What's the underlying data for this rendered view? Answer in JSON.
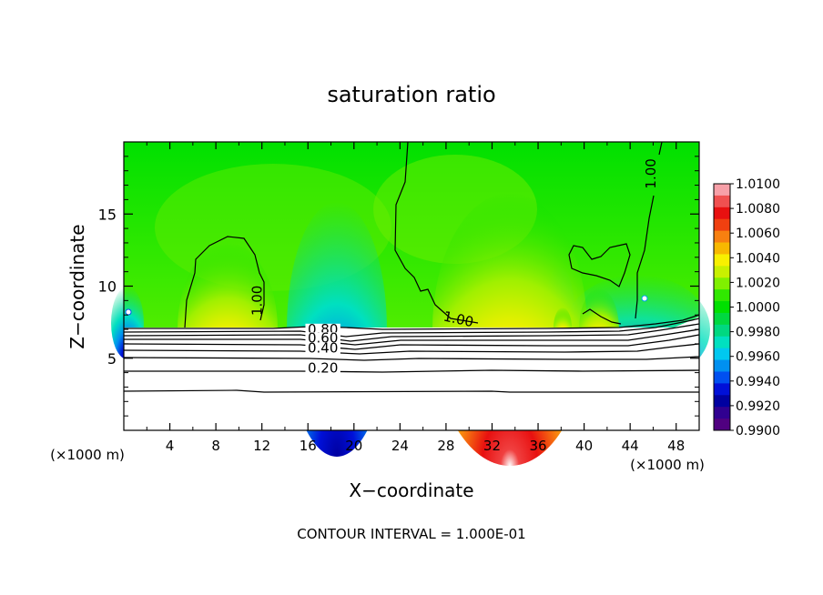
{
  "chart_data": {
    "type": "heatmap",
    "title": "saturation ratio",
    "xlabel": "X−coordinate",
    "ylabel": "Z−coordinate",
    "x_unit_left": "(×1000 m)",
    "x_unit_right": "(×1000 m)",
    "footer": "CONTOUR INTERVAL = 1.000E-01",
    "xlim": [
      0,
      50
    ],
    "ylim": [
      0,
      20
    ],
    "x_ticks": [
      4,
      8,
      12,
      16,
      20,
      24,
      28,
      32,
      36,
      40,
      44,
      48
    ],
    "y_ticks": [
      5,
      10,
      15
    ],
    "colorbar": {
      "levels": [
        "1.0100",
        "1.0080",
        "1.0060",
        "1.0040",
        "1.0020",
        "1.0000",
        "0.9980",
        "0.9960",
        "0.9940",
        "0.9920",
        "0.9900"
      ],
      "colors": [
        "#f7a0a8",
        "#f05050",
        "#e81010",
        "#f04010",
        "#f88010",
        "#f8b800",
        "#f8f000",
        "#c8f000",
        "#80f000",
        "#30e800",
        "#00e000",
        "#00d840",
        "#00d880",
        "#00e0c0",
        "#00c8f0",
        "#0090f0",
        "#0050f0",
        "#0010d8",
        "#0000a0",
        "#300090",
        "#500080"
      ]
    },
    "contour_labels": [
      {
        "text": "1.00",
        "x": 12.0,
        "y": 9.0
      },
      {
        "text": "1.00",
        "x": 29.0,
        "y": 7.4
      },
      {
        "text": "1.00",
        "x": 46.2,
        "y": 17.8
      },
      {
        "text": "0.80",
        "x": 17.3,
        "y": 6.7
      },
      {
        "text": "0.60",
        "x": 17.3,
        "y": 6.1
      },
      {
        "text": "0.40",
        "x": 17.3,
        "y": 5.4
      },
      {
        "text": "0.20",
        "x": 17.3,
        "y": 4.0
      }
    ]
  }
}
